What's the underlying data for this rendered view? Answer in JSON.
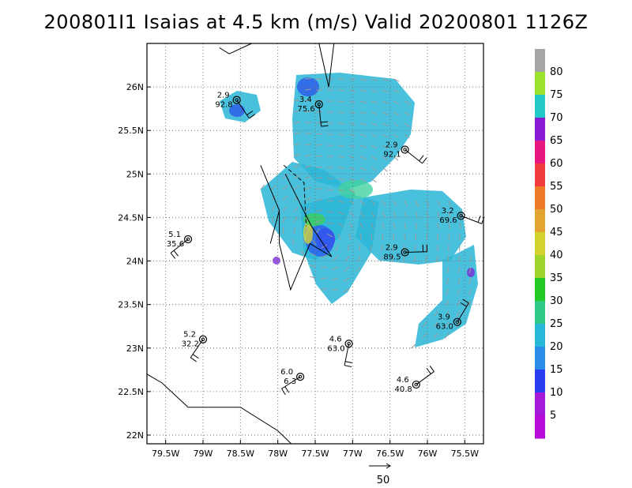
{
  "chart_data": {
    "type": "radar-wind-analysis",
    "title": "200801I1 Isaias at 4.5 km (m/s) Valid 20200801 1126Z",
    "xlim": [
      -79.75,
      -75.25
    ],
    "ylim": [
      21.9,
      26.5
    ],
    "grid": true,
    "x_ticks": [
      {
        "value": -79.5,
        "label": "79.5W"
      },
      {
        "value": -79,
        "label": "79W"
      },
      {
        "value": -78.5,
        "label": "78.5W"
      },
      {
        "value": -78,
        "label": "78W"
      },
      {
        "value": -77.5,
        "label": "77.5W"
      },
      {
        "value": -77,
        "label": "77W"
      },
      {
        "value": -76.5,
        "label": "76.5W"
      },
      {
        "value": -76,
        "label": "76W"
      },
      {
        "value": -75.5,
        "label": "75.5W"
      }
    ],
    "y_ticks": [
      {
        "value": 22,
        "label": "22N"
      },
      {
        "value": 22.5,
        "label": "22.5N"
      },
      {
        "value": 23,
        "label": "23N"
      },
      {
        "value": 23.5,
        "label": "23.5N"
      },
      {
        "value": 24,
        "label": "24N"
      },
      {
        "value": 24.5,
        "label": "24.5N"
      },
      {
        "value": 25,
        "label": "25N"
      },
      {
        "value": 25.5,
        "label": "25.5N"
      },
      {
        "value": 26,
        "label": "26N"
      }
    ],
    "colorbar": {
      "labels": [
        "80",
        "75",
        "70",
        "65",
        "60",
        "55",
        "50",
        "45",
        "40",
        "35",
        "30",
        "25",
        "20",
        "15",
        "10",
        "5"
      ],
      "colors": [
        "#a6a6a6",
        "#9be32c",
        "#22c9c9",
        "#8a1ad6",
        "#e6187f",
        "#f03c3c",
        "#ef7a28",
        "#e2a630",
        "#d2d22a",
        "#9fd52a",
        "#22c922",
        "#2ec987",
        "#26b8d8",
        "#2a8ee8",
        "#2a3cf0",
        "#a51ad6",
        "#b80ad8"
      ]
    },
    "reference_vector": {
      "label": "50"
    },
    "stations": [
      {
        "lon": -78.55,
        "lat": 25.85,
        "top": "2.9",
        "bottom": "92.8"
      },
      {
        "lon": -77.45,
        "lat": 25.8,
        "top": "3.4",
        "bottom": "75.6"
      },
      {
        "lon": -76.3,
        "lat": 25.28,
        "top": "2.9",
        "bottom": "92.1"
      },
      {
        "lon": -75.55,
        "lat": 24.52,
        "top": "3.2",
        "bottom": "69.6"
      },
      {
        "lon": -79.2,
        "lat": 24.25,
        "top": "5.1",
        "bottom": "35.6"
      },
      {
        "lon": -76.3,
        "lat": 24.1,
        "top": "2.9",
        "bottom": "89.5"
      },
      {
        "lon": -75.6,
        "lat": 23.3,
        "top": "3.9",
        "bottom": "63.0"
      },
      {
        "lon": -79.0,
        "lat": 23.1,
        "top": "5.2",
        "bottom": "32.2"
      },
      {
        "lon": -77.05,
        "lat": 23.05,
        "top": "4.6",
        "bottom": "63.0"
      },
      {
        "lon": -77.7,
        "lat": 22.67,
        "top": "6.0",
        "bottom": "6.3"
      },
      {
        "lon": -76.15,
        "lat": 22.58,
        "top": "4.6",
        "bottom": "40.8"
      }
    ]
  }
}
